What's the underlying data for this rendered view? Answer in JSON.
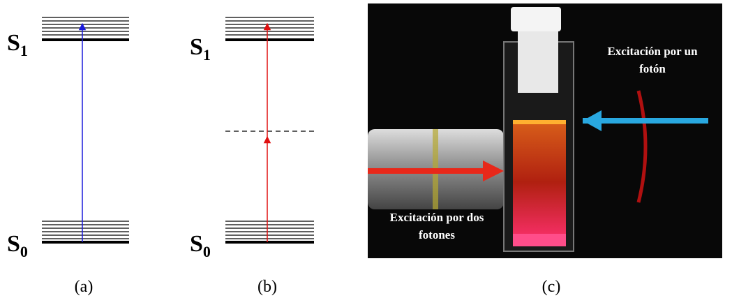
{
  "panels": [
    {
      "upper_state": {
        "letter": "S",
        "subscript": "1"
      },
      "lower_state": {
        "letter": "S",
        "subscript": "0"
      },
      "caption": "(a)"
    },
    {
      "upper_state": {
        "letter": "S",
        "subscript": "1"
      },
      "lower_state": {
        "letter": "S",
        "subscript": "0"
      },
      "caption": "(b)"
    },
    {
      "caption": "(c)",
      "one_photon_label": [
        "Excitación por un",
        "fotón"
      ],
      "two_photon_label": [
        "Excitación por dos",
        "fotones"
      ]
    }
  ]
}
